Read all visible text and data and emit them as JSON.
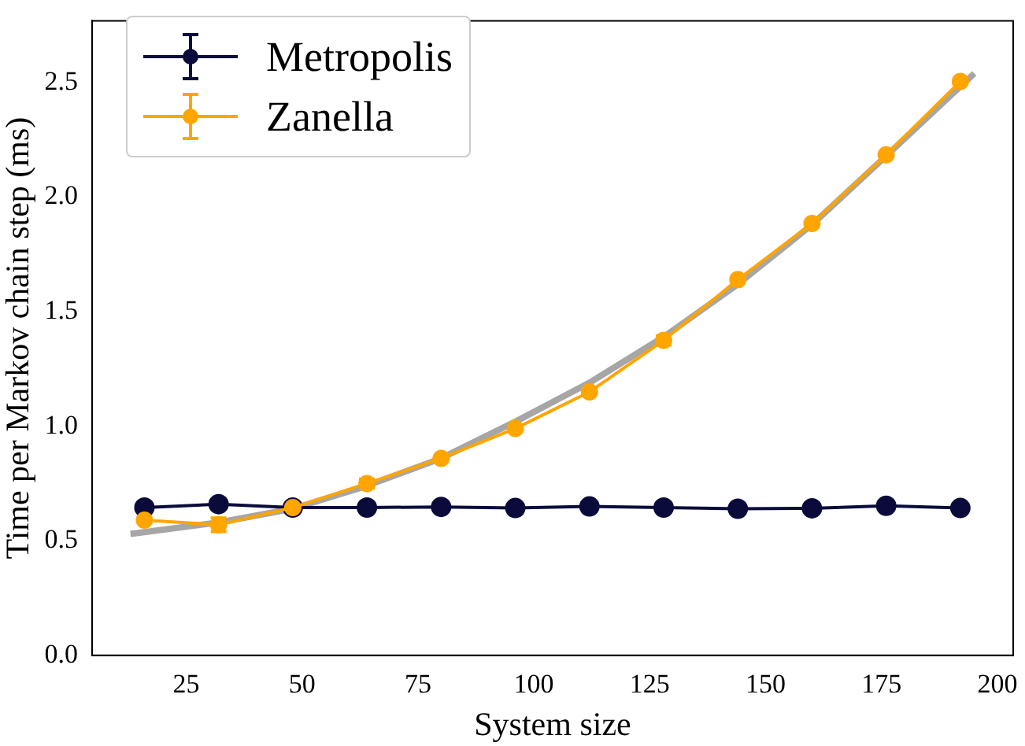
{
  "chart_data": {
    "type": "line",
    "xlabel": "System size",
    "ylabel": "Time per Markov chain step (ms)",
    "xlim": [
      4.7,
      203.4
    ],
    "xticks": [
      25,
      50,
      75,
      100,
      125,
      150,
      175,
      200
    ],
    "ylim": [
      0,
      2.77
    ],
    "yticks": [
      {
        "value": 0,
        "label": "0.0"
      },
      {
        "value": 0.5,
        "label": "0.5"
      },
      {
        "value": 1,
        "label": "1.0"
      },
      {
        "value": 1.5,
        "label": "1.5"
      },
      {
        "value": 2,
        "label": "2.0"
      },
      {
        "value": 2.5,
        "label": "2.5"
      }
    ],
    "grid": false,
    "legend": "top left",
    "marker": "circle",
    "line_style": "solid",
    "series": [
      {
        "name": "Metropolis",
        "color": "#0b0b3b",
        "x": [
          16,
          32,
          48,
          64,
          80,
          96,
          112,
          128,
          144,
          160,
          176,
          192
        ],
        "values": [
          0.645,
          0.66,
          0.645,
          0.645,
          0.648,
          0.643,
          0.65,
          0.645,
          0.64,
          0.642,
          0.653,
          0.643
        ]
      },
      {
        "name": "Zanella",
        "color": "#ffa500",
        "x": [
          16,
          32,
          48,
          64,
          80,
          96,
          112,
          128,
          144,
          160,
          176,
          192
        ],
        "values": [
          0.59,
          0.57,
          0.645,
          0.75,
          0.86,
          0.99,
          1.15,
          1.375,
          1.64,
          1.885,
          2.185,
          2.505
        ],
        "errors": [
          null,
          0.03,
          null,
          0.02,
          null,
          null,
          null,
          0.02,
          null,
          null,
          null,
          null
        ]
      },
      {
        "type": "line",
        "color": "#a6a6a6",
        "marker": "none",
        "x": [
          13,
          32,
          48,
          64,
          80,
          96,
          112,
          128,
          144,
          160,
          176,
          195
        ],
        "values": [
          0.53,
          0.58,
          0.64,
          0.74,
          0.86,
          1.02,
          1.19,
          1.39,
          1.62,
          1.88,
          2.18,
          2.54
        ]
      }
    ]
  }
}
